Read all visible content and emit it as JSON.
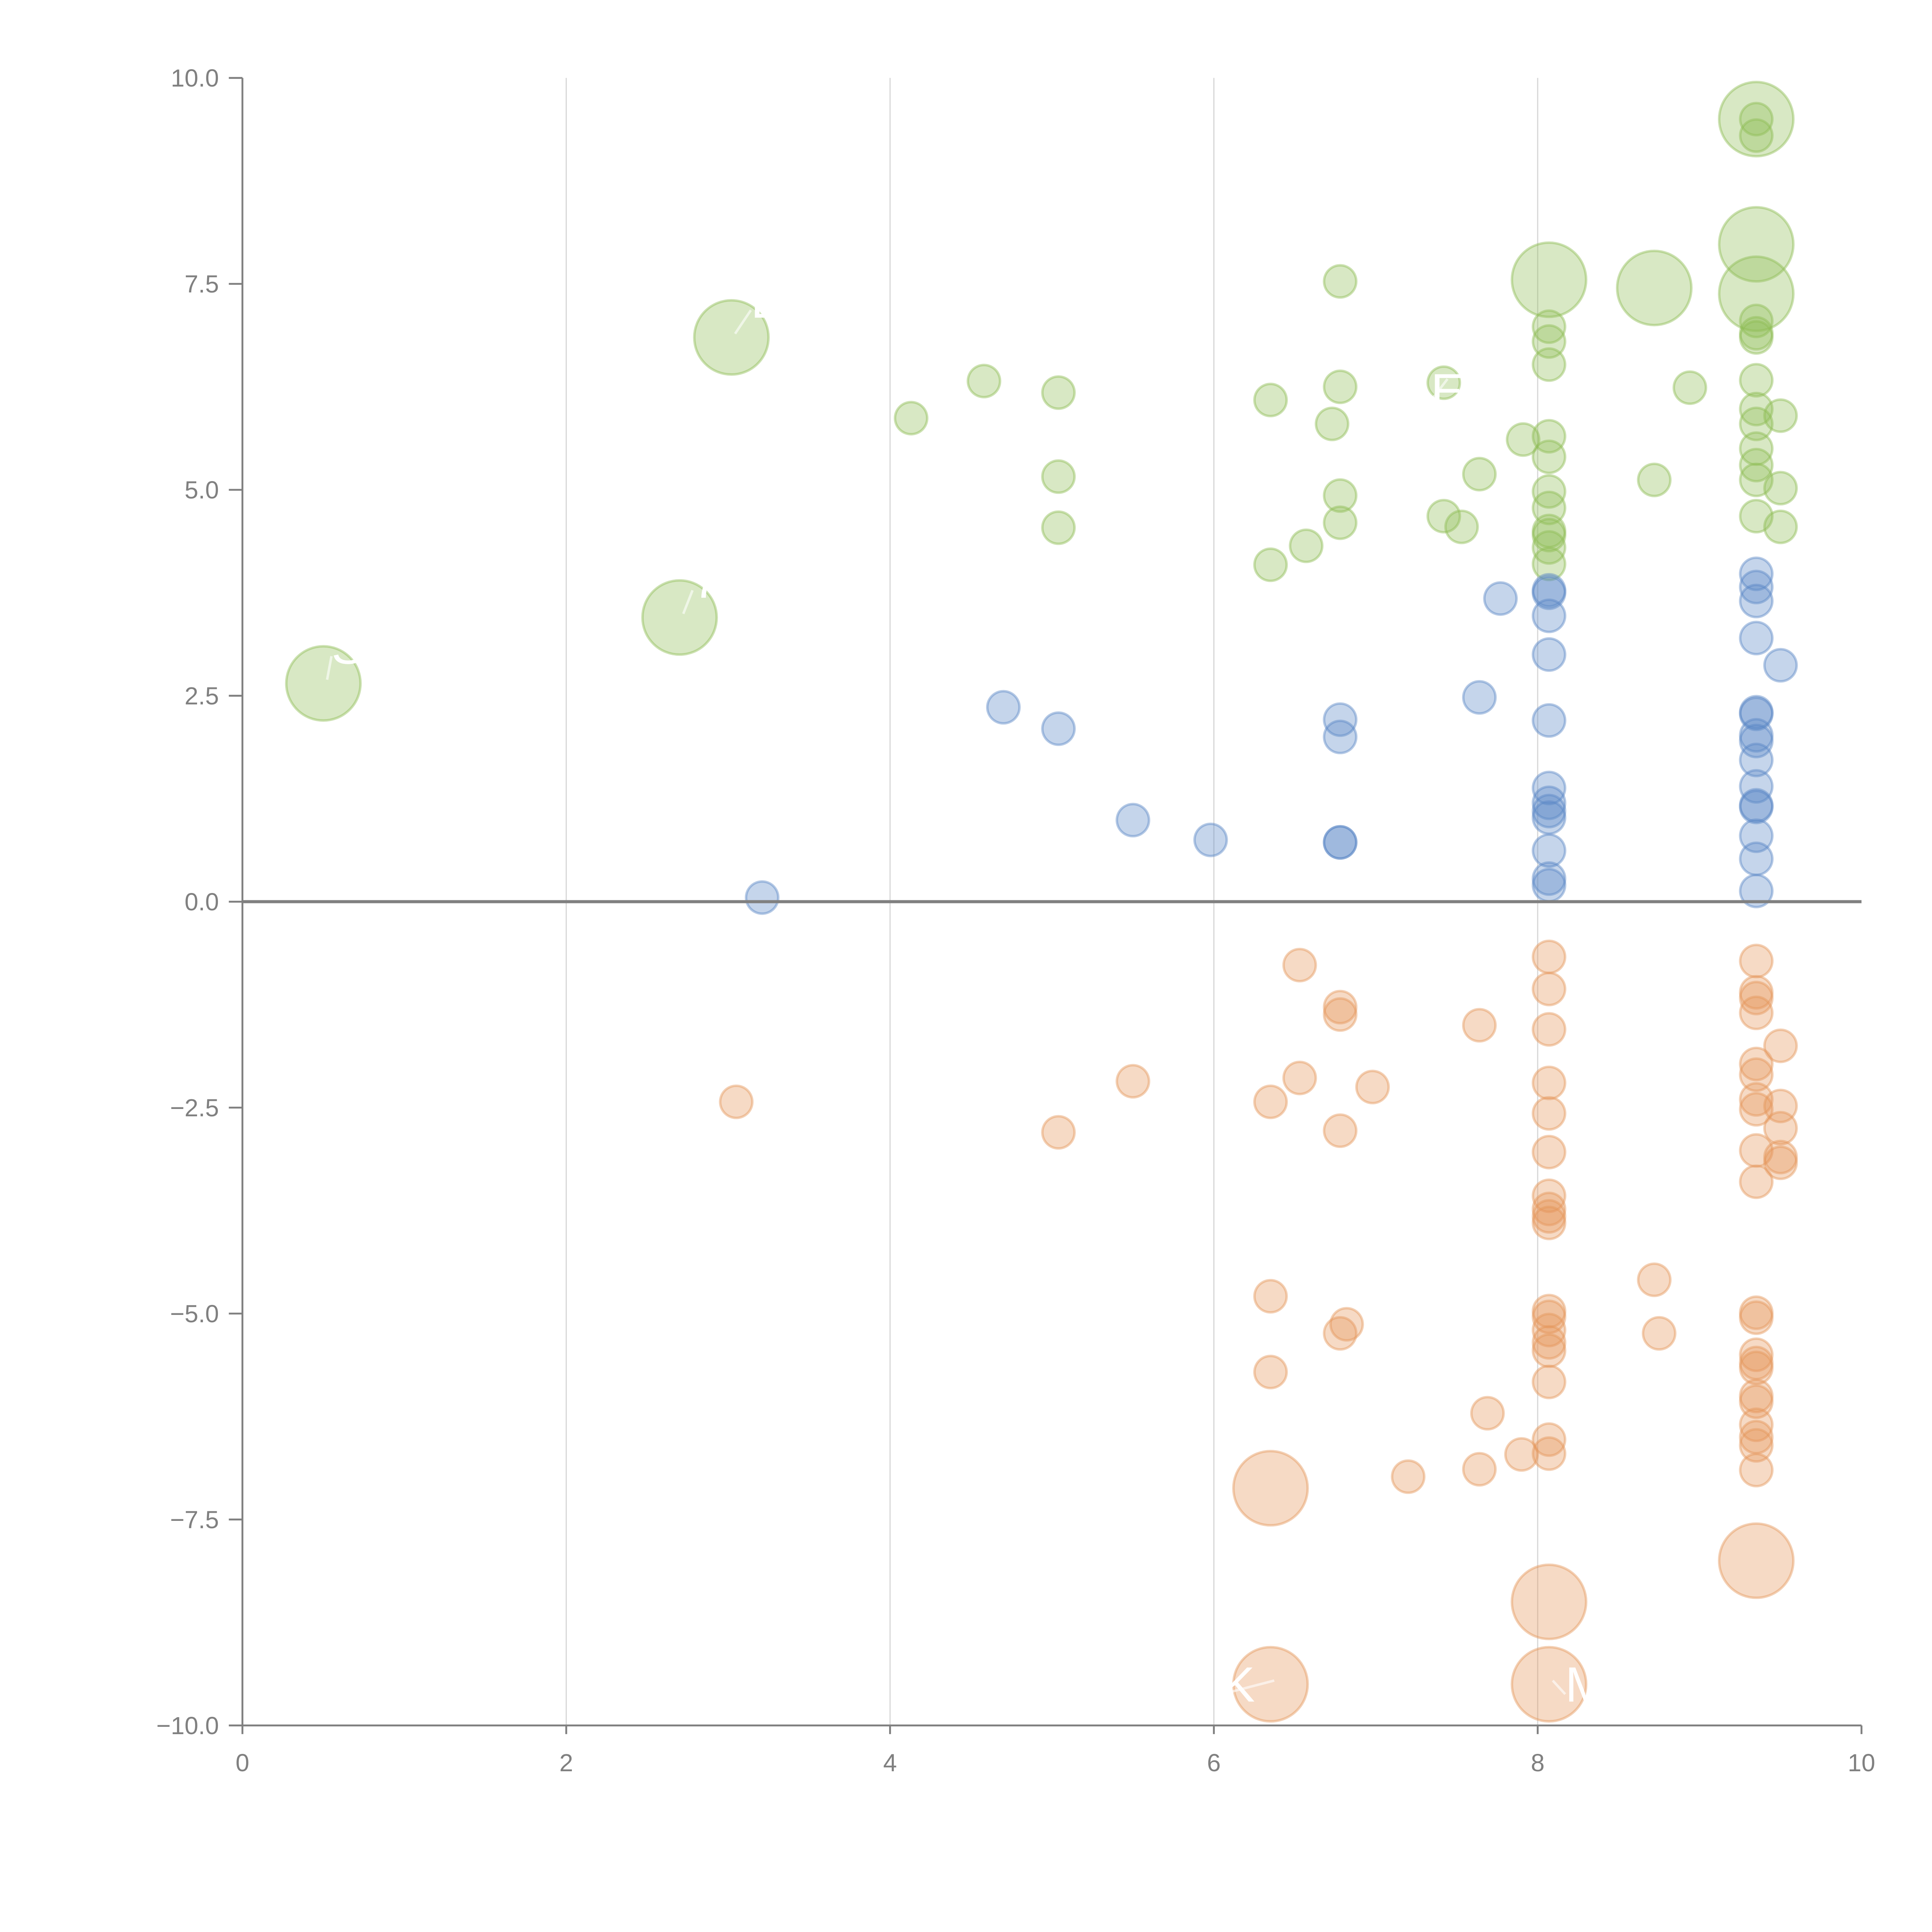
{
  "chart_data": {
    "type": "scatter",
    "title": "",
    "xlabel": "",
    "ylabel": "",
    "xlim": [
      0,
      10
    ],
    "ylim": [
      -10,
      10
    ],
    "grid": "vertical",
    "x_ticks": [
      "0",
      "2",
      "4",
      "6",
      "8",
      "10"
    ],
    "x_tick_values": [
      0,
      2,
      4,
      6,
      8,
      10
    ],
    "y_ticks": [
      "10.0",
      "7.5",
      "5.0",
      "2.5",
      "0.0",
      "−2.5",
      "−5.0",
      "−7.5",
      "−10.0"
    ],
    "y_tick_values": [
      10,
      7.5,
      5,
      2.5,
      0,
      -2.5,
      -5,
      -7.5,
      -10
    ],
    "colors": {
      "green": "#8fbc55",
      "blue": "#5a87c5",
      "orange": "#e4965a"
    },
    "series": [
      {
        "name": "green",
        "color": "green",
        "points": [
          [
            0.5,
            2.65,
            2
          ],
          [
            2.7,
            3.45,
            2
          ],
          [
            3.02,
            6.85,
            2
          ],
          [
            8.07,
            7.55,
            2
          ],
          [
            8.72,
            7.45,
            2
          ],
          [
            9.35,
            7.98,
            2
          ],
          [
            9.35,
            7.38,
            2
          ],
          [
            9.35,
            9.5,
            2
          ],
          [
            4.13,
            5.87,
            1
          ],
          [
            4.58,
            6.32,
            1
          ],
          [
            5.04,
            6.18,
            1
          ],
          [
            5.04,
            5.16,
            1
          ],
          [
            5.04,
            4.54,
            1
          ],
          [
            6.35,
            6.09,
            1
          ],
          [
            6.35,
            4.09,
            1
          ],
          [
            6.57,
            4.32,
            1
          ],
          [
            6.73,
            5.8,
            1
          ],
          [
            6.78,
            7.53,
            1
          ],
          [
            6.78,
            6.25,
            1
          ],
          [
            6.78,
            4.93,
            1
          ],
          [
            6.78,
            4.6,
            1
          ],
          [
            7.42,
            4.68,
            1
          ],
          [
            7.53,
            4.55,
            1
          ],
          [
            7.64,
            5.19,
            1
          ],
          [
            7.91,
            5.61,
            1
          ],
          [
            8.07,
            5.65,
            1
          ],
          [
            8.07,
            5.4,
            1
          ],
          [
            8.07,
            4.98,
            1
          ],
          [
            8.07,
            4.78,
            1
          ],
          [
            8.07,
            4.5,
            1
          ],
          [
            8.07,
            4.45,
            1
          ],
          [
            8.07,
            4.3,
            1
          ],
          [
            8.07,
            4.1,
            1
          ],
          [
            8.07,
            6.98,
            1
          ],
          [
            8.07,
            6.8,
            1
          ],
          [
            8.07,
            6.52,
            1
          ],
          [
            8.72,
            5.12,
            1
          ],
          [
            8.94,
            6.24,
            1
          ],
          [
            9.35,
            9.5,
            1
          ],
          [
            9.35,
            9.3,
            1
          ],
          [
            9.35,
            6.9,
            1
          ],
          [
            9.35,
            6.85,
            1
          ],
          [
            9.35,
            7.05,
            1
          ],
          [
            9.35,
            6.33,
            1
          ],
          [
            9.35,
            5.98,
            1
          ],
          [
            9.35,
            5.8,
            1
          ],
          [
            9.35,
            5.5,
            1
          ],
          [
            9.35,
            5.3,
            1
          ],
          [
            9.35,
            5.12,
            1
          ],
          [
            9.35,
            4.68,
            1
          ],
          [
            9.5,
            5.9,
            1
          ],
          [
            9.5,
            5.02,
            1
          ],
          [
            9.5,
            4.55,
            1
          ],
          [
            7.42,
            6.3,
            1
          ]
        ]
      },
      {
        "name": "blue",
        "color": "blue",
        "points": [
          [
            3.21,
            0.05,
            1
          ],
          [
            4.7,
            2.36,
            1
          ],
          [
            5.04,
            2.1,
            1
          ],
          [
            5.5,
            0.99,
            1
          ],
          [
            5.98,
            0.75,
            1
          ],
          [
            6.78,
            2.21,
            1
          ],
          [
            6.78,
            2.0,
            1
          ],
          [
            6.78,
            0.72,
            1
          ],
          [
            6.78,
            0.72,
            1
          ],
          [
            7.64,
            2.48,
            1
          ],
          [
            7.77,
            3.68,
            1
          ],
          [
            8.07,
            3.78,
            1
          ],
          [
            8.07,
            3.75,
            1
          ],
          [
            8.07,
            3.47,
            1
          ],
          [
            8.07,
            3.0,
            1
          ],
          [
            8.07,
            2.2,
            1
          ],
          [
            8.07,
            1.38,
            1
          ],
          [
            8.07,
            1.2,
            1
          ],
          [
            8.07,
            1.1,
            1
          ],
          [
            8.07,
            1.02,
            1
          ],
          [
            8.07,
            0.62,
            1
          ],
          [
            8.07,
            0.28,
            1
          ],
          [
            8.07,
            0.2,
            1
          ],
          [
            9.35,
            3.98,
            1
          ],
          [
            9.35,
            3.82,
            1
          ],
          [
            9.35,
            3.65,
            1
          ],
          [
            9.35,
            3.2,
            1
          ],
          [
            9.5,
            2.87,
            1
          ],
          [
            9.35,
            2.3,
            1
          ],
          [
            9.35,
            2.28,
            1
          ],
          [
            9.35,
            2.02,
            1
          ],
          [
            9.35,
            1.95,
            1
          ],
          [
            9.35,
            1.72,
            1
          ],
          [
            9.35,
            1.4,
            1
          ],
          [
            9.35,
            1.17,
            1
          ],
          [
            9.35,
            1.15,
            1
          ],
          [
            9.35,
            0.8,
            1
          ],
          [
            9.35,
            0.52,
            1
          ],
          [
            9.35,
            0.13,
            1
          ]
        ]
      },
      {
        "name": "orange",
        "color": "orange",
        "points": [
          [
            3.05,
            -2.43,
            1
          ],
          [
            5.04,
            -2.8,
            1
          ],
          [
            5.5,
            -2.18,
            1
          ],
          [
            6.35,
            -2.43,
            1
          ],
          [
            6.53,
            -0.77,
            1
          ],
          [
            6.53,
            -2.14,
            1
          ],
          [
            6.78,
            -1.28,
            1
          ],
          [
            6.78,
            -1.37,
            1
          ],
          [
            6.78,
            -2.78,
            1
          ],
          [
            6.98,
            -2.25,
            1
          ],
          [
            7.64,
            -1.5,
            1
          ],
          [
            6.35,
            -4.79,
            1
          ],
          [
            6.35,
            -5.71,
            1
          ],
          [
            6.78,
            -5.24,
            1
          ],
          [
            6.82,
            -5.13,
            1
          ],
          [
            7.69,
            -6.21,
            1
          ],
          [
            7.64,
            -6.89,
            1
          ],
          [
            7.2,
            -6.98,
            1
          ],
          [
            7.9,
            -6.71,
            1
          ],
          [
            8.07,
            -0.67,
            1
          ],
          [
            8.07,
            -1.06,
            1
          ],
          [
            8.07,
            -1.55,
            1
          ],
          [
            8.07,
            -2.2,
            1
          ],
          [
            8.07,
            -2.57,
            1
          ],
          [
            8.07,
            -3.04,
            1
          ],
          [
            8.07,
            -3.57,
            1
          ],
          [
            8.07,
            -3.73,
            1
          ],
          [
            8.07,
            -3.82,
            1
          ],
          [
            8.07,
            -3.9,
            1
          ],
          [
            8.07,
            -4.97,
            1
          ],
          [
            8.07,
            -5.04,
            1
          ],
          [
            8.07,
            -5.2,
            1
          ],
          [
            8.07,
            -5.35,
            1
          ],
          [
            8.07,
            -5.45,
            1
          ],
          [
            8.07,
            -5.83,
            1
          ],
          [
            8.07,
            -6.53,
            1
          ],
          [
            8.07,
            -6.7,
            1
          ],
          [
            8.72,
            -4.59,
            1
          ],
          [
            8.75,
            -5.24,
            1
          ],
          [
            9.35,
            -0.72,
            1
          ],
          [
            9.35,
            -1.1,
            1
          ],
          [
            9.35,
            -1.17,
            1
          ],
          [
            9.35,
            -1.35,
            1
          ],
          [
            9.35,
            -1.97,
            1
          ],
          [
            9.35,
            -2.1,
            1
          ],
          [
            9.35,
            -2.4,
            1
          ],
          [
            9.35,
            -2.52,
            1
          ],
          [
            9.35,
            -3.02,
            1
          ],
          [
            9.35,
            -3.4,
            1
          ],
          [
            9.5,
            -1.75,
            1
          ],
          [
            9.5,
            -2.48,
            1
          ],
          [
            9.5,
            -2.75,
            1
          ],
          [
            9.5,
            -3.1,
            1
          ],
          [
            9.5,
            -3.17,
            1
          ],
          [
            9.35,
            -4.99,
            1
          ],
          [
            9.35,
            -5.05,
            1
          ],
          [
            9.35,
            -5.5,
            1
          ],
          [
            9.35,
            -5.6,
            1
          ],
          [
            9.35,
            -5.66,
            1
          ],
          [
            9.35,
            -6.0,
            1
          ],
          [
            9.35,
            -6.07,
            1
          ],
          [
            9.35,
            -6.35,
            1
          ],
          [
            9.35,
            -6.5,
            1
          ],
          [
            9.35,
            -6.6,
            1
          ],
          [
            9.35,
            -6.9,
            1
          ],
          [
            6.35,
            -7.12,
            2
          ],
          [
            8.07,
            -8.5,
            2
          ],
          [
            9.35,
            -8.0,
            2
          ],
          [
            6.35,
            -9.5,
            2
          ],
          [
            8.07,
            -9.5,
            2
          ]
        ]
      }
    ],
    "annotations": [
      {
        "text": "S",
        "x": 0.5,
        "y": 2.65,
        "dx": 0.05,
        "dy": 0.45
      },
      {
        "text": "7",
        "x": 2.7,
        "y": 3.45,
        "dx": 0.08,
        "dy": 0.45
      },
      {
        "text": "E",
        "x": 3.02,
        "y": 6.85,
        "dx": 0.12,
        "dy": 0.45
      },
      {
        "text": "E",
        "x": 7.42,
        "y": 6.3,
        "dx": -0.08,
        "dy": -0.1
      },
      {
        "text": "K",
        "x": 6.35,
        "y": -9.5,
        "dx": -0.3,
        "dy": 0.0
      },
      {
        "text": "M",
        "x": 8.07,
        "y": -9.5,
        "dx": 0.1,
        "dy": 0.0
      }
    ]
  }
}
